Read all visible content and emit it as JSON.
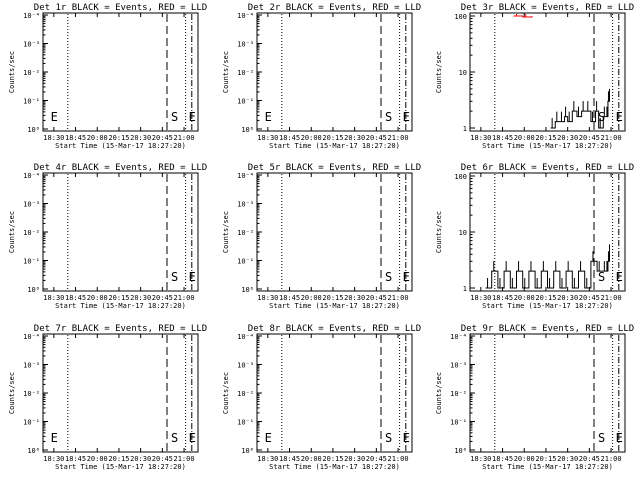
{
  "chart_data": [
    {
      "type": "line",
      "title": "Det 1r BLACK = Events, RED = LLD",
      "ylabel": "Counts/sec",
      "xlabel": "Start Time (15-Mar-17 18:27:20)",
      "xticks": [
        "18:30",
        "18:45",
        "20:00",
        "20:15",
        "20:30",
        "20:45",
        "21:00"
      ],
      "yscale": "log",
      "yticks": [
        "10⁰",
        "10⁻¹",
        "10⁻²",
        "10⁻³",
        "10⁻⁴"
      ],
      "ylim": [
        -4,
        0
      ],
      "markers": [
        "E",
        "S",
        "E"
      ],
      "series": []
    },
    {
      "type": "line",
      "title": "Det 2r BLACK = Events, RED = LLD",
      "ylabel": "Counts/sec",
      "xlabel": "Start Time (15-Mar-17 18:27:20)",
      "xticks": [
        "18:30",
        "18:45",
        "20:00",
        "20:15",
        "20:30",
        "20:45",
        "21:00"
      ],
      "yscale": "log",
      "yticks": [
        "10⁰",
        "10⁻¹",
        "10⁻²",
        "10⁻³",
        "10⁻⁴"
      ],
      "ylim": [
        -4,
        0
      ],
      "markers": [
        "E",
        "S",
        "E"
      ],
      "series": []
    },
    {
      "type": "line",
      "title": "Det 3r BLACK = Events, RED = LLD",
      "ylabel": "Counts/sec",
      "xlabel": "Start Time (15-Mar-17 18:27:20)",
      "xticks": [
        "18:30",
        "18:45",
        "20:00",
        "20:15",
        "20:30",
        "20:45",
        "21:00"
      ],
      "yscale": "log",
      "yticks": [
        "100",
        "10",
        "1"
      ],
      "ylim": [
        1,
        100
      ],
      "markers": [
        "S",
        "E"
      ],
      "series": [
        {
          "name": "Events",
          "color": "#000000",
          "x": [
            0.52,
            0.55,
            0.58,
            0.61,
            0.63,
            0.66,
            0.69,
            0.72,
            0.75,
            0.78,
            0.81,
            0.83,
            0.86,
            0.88,
            0.89,
            0.9
          ],
          "y": [
            1,
            1.3,
            1.3,
            1.6,
            1.3,
            2,
            1.6,
            2,
            2,
            1.3,
            2,
            1,
            1.6,
            1.6,
            3,
            5
          ]
        },
        {
          "name": "LLD",
          "color": "#ff0000",
          "x": [
            0.28,
            0.34,
            0.4
          ],
          "y": [
            100,
            96,
            100
          ]
        }
      ]
    },
    {
      "type": "line",
      "title": "Det 4r BLACK = Events, RED = LLD",
      "ylabel": "Counts/sec",
      "xlabel": "Start Time (15-Mar-17 18:27:20)",
      "xticks": [
        "18:30",
        "18:45",
        "20:00",
        "20:15",
        "20:30",
        "20:45",
        "21:00"
      ],
      "yscale": "log",
      "yticks": [
        "10⁰",
        "10⁻¹",
        "10⁻²",
        "10⁻³",
        "10⁻⁴"
      ],
      "ylim": [
        -4,
        0
      ],
      "markers": [
        "S",
        "E"
      ],
      "series": []
    },
    {
      "type": "line",
      "title": "Det 5r BLACK = Events, RED = LLD",
      "ylabel": "Counts/sec",
      "xlabel": "Start Time (15-Mar-17 18:27:20)",
      "xticks": [
        "18:30",
        "18:45",
        "20:00",
        "20:15",
        "20:30",
        "20:45",
        "21:00"
      ],
      "yscale": "log",
      "yticks": [
        "10⁰",
        "10⁻¹",
        "10⁻²",
        "10⁻³",
        "10⁻⁴"
      ],
      "ylim": [
        -4,
        0
      ],
      "markers": [
        "S",
        "E"
      ],
      "series": []
    },
    {
      "type": "line",
      "title": "Det 6r BLACK = Events, RED = LLD",
      "ylabel": "Counts/sec",
      "xlabel": "Start Time (15-Mar-17 18:27:20)",
      "xticks": [
        "18:30",
        "18:45",
        "20:00",
        "20:15",
        "20:30",
        "20:45",
        "21:00"
      ],
      "yscale": "log",
      "yticks": [
        "100",
        "10",
        "1"
      ],
      "ylim": [
        1,
        100
      ],
      "markers": [
        "S",
        "E"
      ],
      "series": [
        {
          "name": "Events",
          "color": "#000000",
          "x": [
            0.1,
            0.14,
            0.18,
            0.22,
            0.26,
            0.3,
            0.34,
            0.38,
            0.42,
            0.46,
            0.5,
            0.54,
            0.58,
            0.62,
            0.66,
            0.7,
            0.74,
            0.78,
            0.82,
            0.86,
            0.88,
            0.89,
            0.9
          ],
          "y": [
            1,
            2,
            1,
            2,
            1,
            2,
            1,
            2,
            1,
            2,
            1,
            2,
            1,
            2,
            1,
            2,
            1,
            3,
            2,
            2,
            2,
            3,
            6
          ]
        }
      ]
    },
    {
      "type": "line",
      "title": "Det 7r BLACK = Events, RED = LLD",
      "ylabel": "Counts/sec",
      "xlabel": "Start Time (15-Mar-17 18:27:20)",
      "xticks": [
        "18:30",
        "18:45",
        "20:00",
        "20:15",
        "20:30",
        "20:45",
        "21:00"
      ],
      "yscale": "log",
      "yticks": [
        "10⁰",
        "10⁻¹",
        "10⁻²",
        "10⁻³",
        "10⁻⁴"
      ],
      "ylim": [
        -4,
        0
      ],
      "markers": [
        "E",
        "S",
        "E"
      ],
      "series": []
    },
    {
      "type": "line",
      "title": "Det 8r BLACK = Events, RED = LLD",
      "ylabel": "Counts/sec",
      "xlabel": "Start Time (15-Mar-17 18:27:20)",
      "xticks": [
        "18:30",
        "18:45",
        "20:00",
        "20:15",
        "20:30",
        "20:45",
        "21:00"
      ],
      "yscale": "log",
      "yticks": [
        "10⁰",
        "10⁻¹",
        "10⁻²",
        "10⁻³",
        "10⁻⁴"
      ],
      "ylim": [
        -4,
        0
      ],
      "markers": [
        "E",
        "S",
        "E"
      ],
      "series": []
    },
    {
      "type": "line",
      "title": "Det 9r BLACK = Events, RED = LLD",
      "ylabel": "Counts/sec",
      "xlabel": "Start Time (15-Mar-17 18:27:20)",
      "xticks": [
        "18:30",
        "18:45",
        "20:00",
        "20:15",
        "20:30",
        "20:45",
        "21:00"
      ],
      "yscale": "log",
      "yticks": [
        "10⁰",
        "10⁻¹",
        "10⁻²",
        "10⁻³",
        "10⁻⁴"
      ],
      "ylim": [
        -4,
        0
      ],
      "markers": [
        "S",
        "E"
      ],
      "series": []
    }
  ]
}
